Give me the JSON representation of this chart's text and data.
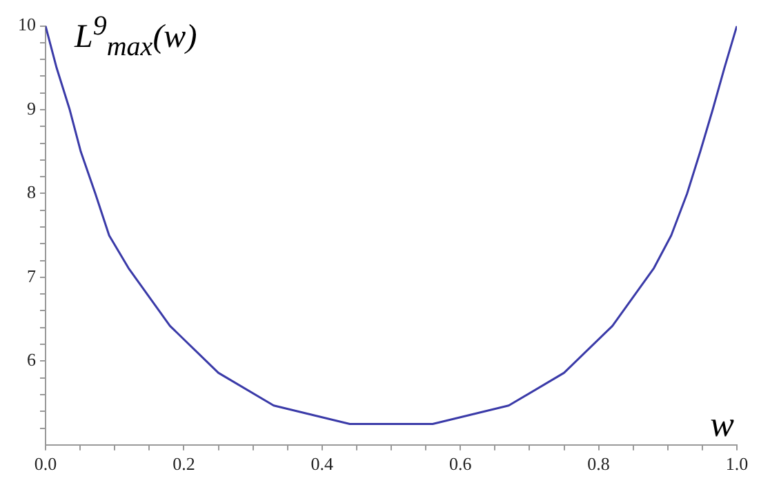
{
  "chart_data": {
    "type": "line",
    "ylabel": "L$^{9}$$_{max}$(w)",
    "xlabel": "w",
    "x": [
      0,
      0.016,
      0.035,
      0.051,
      0.072,
      0.092,
      0.12,
      0.18,
      0.25,
      0.33,
      0.44,
      0.5,
      0.56,
      0.67,
      0.75,
      0.82,
      0.88,
      0.905,
      0.928,
      0.947,
      0.965,
      0.982,
      1
    ],
    "series": [
      {
        "color": "#3a3aa8",
        "values": [
          10,
          9.5,
          9,
          8.5,
          8,
          7.5,
          7.11,
          6.42,
          5.86,
          5.47,
          5.25,
          5.25,
          5.25,
          5.47,
          5.86,
          6.42,
          7.11,
          7.5,
          8,
          8.5,
          9,
          9.5,
          10
        ]
      }
    ],
    "xlim": [
      0,
      1
    ],
    "ylim": [
      5,
      10
    ],
    "xticks": [
      {
        "value": 0,
        "label": "0.0"
      },
      {
        "value": 0.05,
        "label": null
      },
      {
        "value": 0.1,
        "label": null
      },
      {
        "value": 0.15,
        "label": null
      },
      0.2,
      {
        "value": 0.25,
        "label": null
      },
      {
        "value": 0.3,
        "label": null
      },
      {
        "value": 0.35,
        "label": null
      },
      0.4,
      {
        "value": 0.45,
        "label": null
      },
      {
        "value": 0.5,
        "label": null
      },
      {
        "value": 0.55,
        "label": null
      },
      0.6,
      {
        "value": 0.65,
        "label": null
      },
      {
        "value": 0.7,
        "label": null
      },
      {
        "value": 0.75,
        "label": null
      },
      0.8,
      {
        "value": 0.85,
        "label": null
      },
      {
        "value": 0.9,
        "label": null
      },
      {
        "value": 0.95,
        "label": null
      },
      {
        "value": 1,
        "label": "1.0"
      }
    ],
    "yticks": [
      {
        "value": 5.2,
        "label": null
      },
      {
        "value": 5.4,
        "label": null
      },
      {
        "value": 5.6,
        "label": null
      },
      {
        "value": 5.8,
        "label": null
      },
      6,
      {
        "value": 6.2,
        "label": null
      },
      {
        "value": 6.4,
        "label": null
      },
      {
        "value": 6.6,
        "label": null
      },
      {
        "value": 6.8,
        "label": null
      },
      7,
      {
        "value": 7.2,
        "label": null
      },
      {
        "value": 7.4,
        "label": null
      },
      {
        "value": 7.6,
        "label": null
      },
      {
        "value": 7.8,
        "label": null
      },
      8,
      {
        "value": 8.2,
        "label": null
      },
      {
        "value": 8.4,
        "label": null
      },
      {
        "value": 8.6,
        "label": null
      },
      {
        "value": 8.8,
        "label": null
      },
      9,
      {
        "value": 9.2,
        "label": null
      },
      {
        "value": 9.4,
        "label": null
      },
      {
        "value": 9.6,
        "label": null
      },
      {
        "value": 9.8,
        "label": null
      },
      10
    ],
    "grid": false,
    "legend": false,
    "marker": "none",
    "line_style": "solid"
  }
}
